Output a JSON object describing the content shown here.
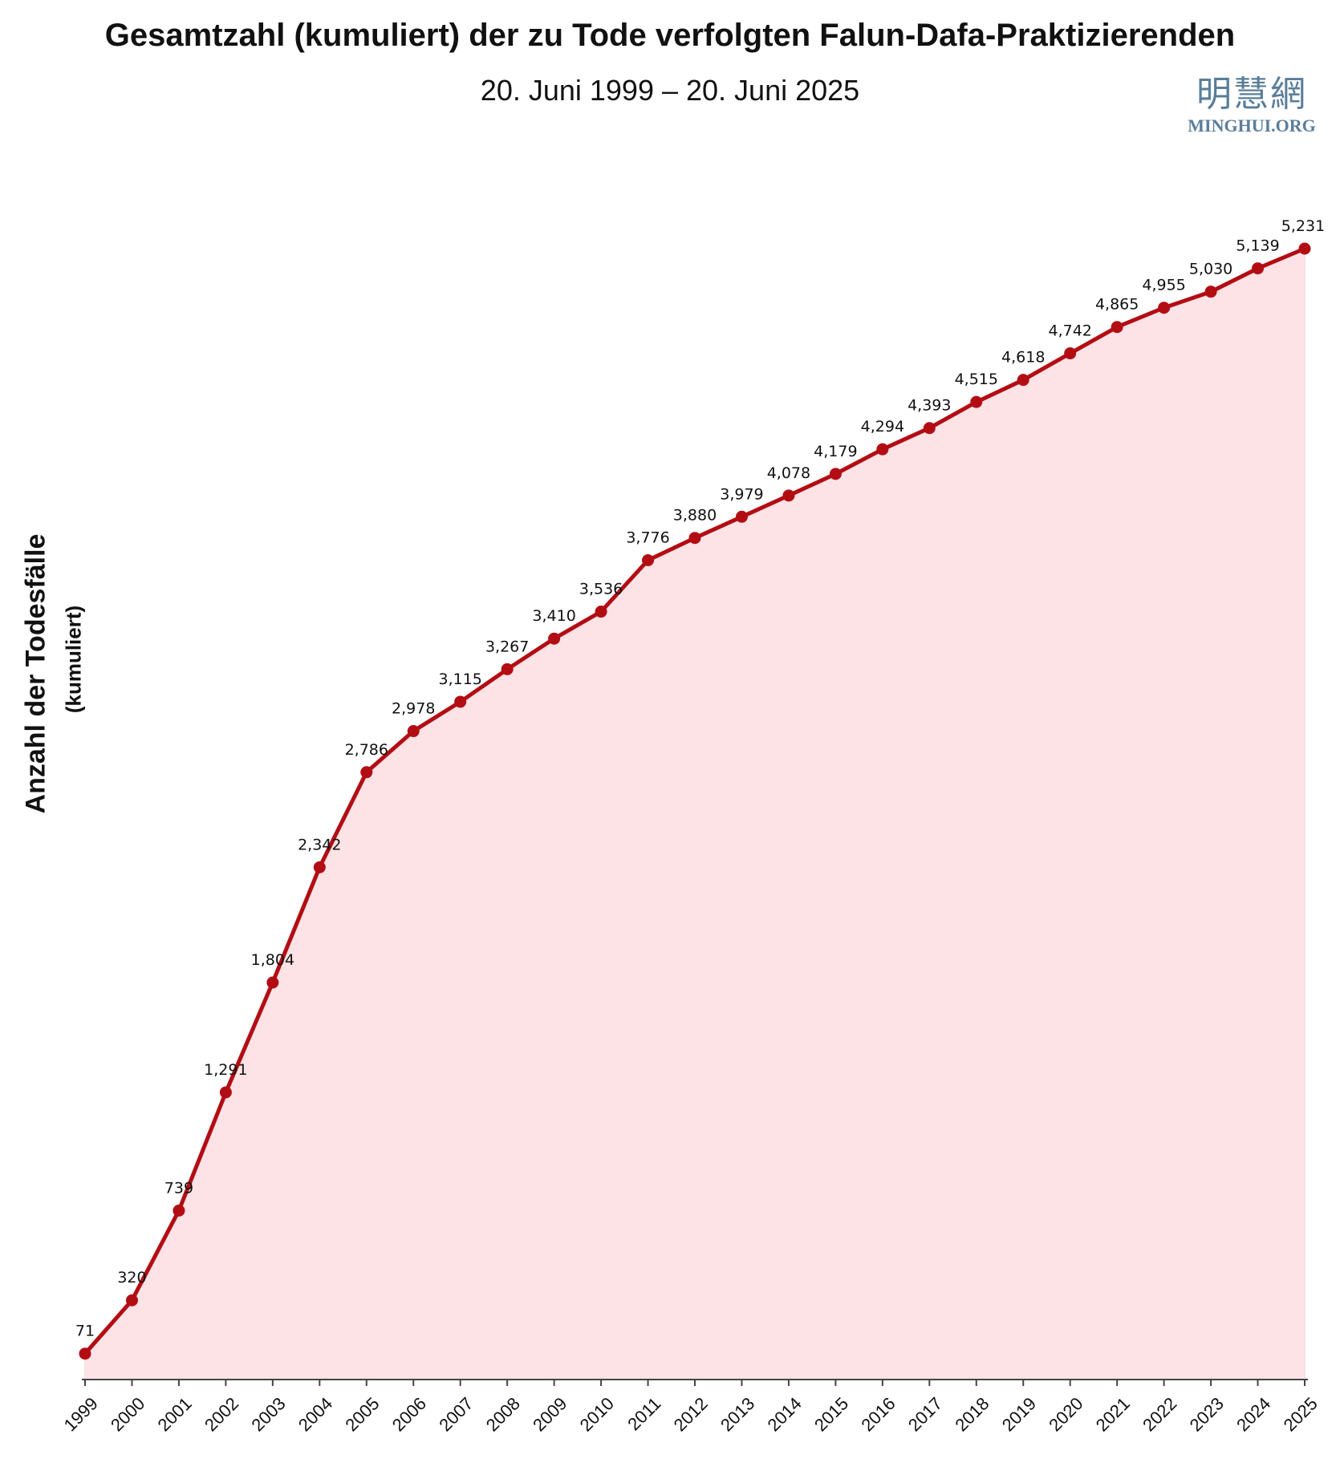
{
  "title": "Gesamtzahl (kumuliert) der zu Tode verfolgten Falun-Dafa-Praktizierenden",
  "subtitle": "20. Juni 1999 – 20. Juni 2025",
  "logo": {
    "chinese": "明慧網",
    "english": "MINGHUI.ORG"
  },
  "colors": {
    "line": "#b30d14",
    "fill": "#fde3e6",
    "grid": "#e8d8da",
    "axis": "#444444"
  },
  "chart_data": {
    "type": "area",
    "ylabel": "Anzahl der Todesfälle",
    "ylabel_sub": "(kumuliert)",
    "xlabel": "",
    "categories": [
      "1999",
      "2000",
      "2001",
      "2002",
      "2003",
      "2004",
      "2005",
      "2006",
      "2007",
      "2008",
      "2009",
      "2010",
      "2011",
      "2012",
      "2013",
      "2014",
      "2015",
      "2016",
      "2017",
      "2018",
      "2019",
      "2020",
      "2021",
      "2022",
      "2023",
      "2024",
      "2025"
    ],
    "values": [
      71,
      320,
      739,
      1291,
      1804,
      2342,
      2786,
      2978,
      3115,
      3267,
      3410,
      3536,
      3776,
      3880,
      3979,
      4078,
      4179,
      4294,
      4393,
      4515,
      4618,
      4742,
      4865,
      4955,
      5030,
      5139,
      5231
    ],
    "data_labels": [
      "71",
      "320",
      "739",
      "1,291",
      "1,804",
      "2,342",
      "2,786",
      "2,978",
      "3,115",
      "3,267",
      "3,410",
      "3,536",
      "3,776",
      "3,880",
      "3,979",
      "4,078",
      "4,179",
      "4,294",
      "4,393",
      "4,515",
      "4,618",
      "4,742",
      "4,865",
      "4,955",
      "5,030",
      "5,139",
      "5,231"
    ],
    "ylim": [
      -50,
      5231
    ],
    "grid": "vertical",
    "legend": "none"
  }
}
